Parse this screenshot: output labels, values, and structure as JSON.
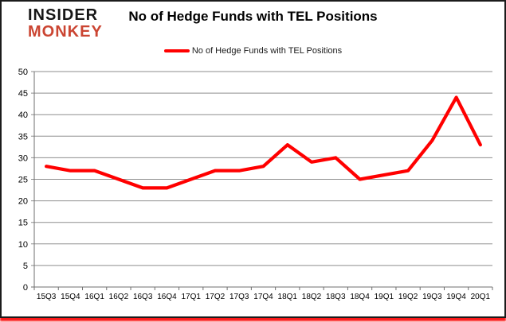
{
  "branding": {
    "logo_line1": "INSIDER",
    "logo_line2": "MONKEY"
  },
  "header": {
    "title": "No of Hedge Funds with TEL Positions"
  },
  "legend": {
    "label": "No of Hedge Funds with TEL Positions"
  },
  "colors": {
    "logo_black": "#161616",
    "logo_red": "#CB4532",
    "series_red": "#FF0000",
    "grid": "#8E8E8E",
    "axis": "#6F6F6F",
    "tick_text": "#000000",
    "frame_border": "#1B1B1B",
    "bottom_shadow": "#FA0505",
    "background": "#FFFFFF"
  },
  "chart_data": {
    "type": "line",
    "title": "No of Hedge Funds with TEL Positions",
    "xlabel": "",
    "ylabel": "",
    "categories": [
      "15Q3",
      "15Q4",
      "16Q1",
      "16Q2",
      "16Q3",
      "16Q4",
      "17Q1",
      "17Q2",
      "17Q3",
      "17Q4",
      "18Q1",
      "18Q2",
      "18Q3",
      "18Q4",
      "19Q1",
      "19Q2",
      "19Q3",
      "19Q4",
      "20Q1"
    ],
    "series": [
      {
        "name": "No of Hedge Funds with TEL Positions",
        "color": "#FF0000",
        "values": [
          28,
          27,
          27,
          25,
          23,
          23,
          25,
          27,
          27,
          28,
          33,
          29,
          30,
          25,
          26,
          27,
          34,
          44,
          33
        ]
      }
    ],
    "ylim": [
      0,
      50
    ],
    "yticks": [
      0,
      5,
      10,
      15,
      20,
      25,
      30,
      35,
      40,
      45,
      50
    ],
    "grid": true,
    "legend_position": "top"
  }
}
